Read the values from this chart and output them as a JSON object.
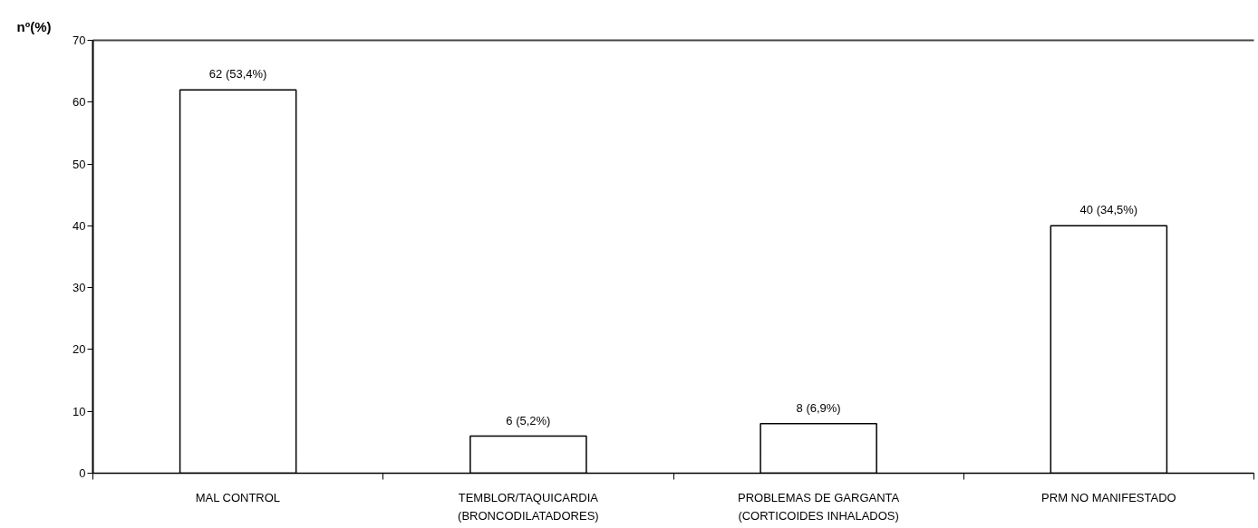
{
  "chart_data": {
    "type": "bar",
    "ylabel": "nº(%)",
    "categories": [
      "MAL CONTROL",
      "TEMBLOR/TAQUICARDIA\n(BRONCODILATADORES)",
      "PROBLEMAS DE GARGANTA\n(CORTICOIDES INHALADOS)",
      "PRM NO MANIFESTADO"
    ],
    "values": [
      62,
      6,
      8,
      40
    ],
    "color": "#ffffff",
    "value_labels": [
      "62 (53,4%)",
      "6 (5,2%)",
      "8 (6,9%)",
      "40 (34,5%)"
    ],
    "ylim": [
      0,
      70
    ],
    "yticks": [
      0,
      10,
      20,
      30,
      40,
      50,
      60,
      70
    ]
  }
}
